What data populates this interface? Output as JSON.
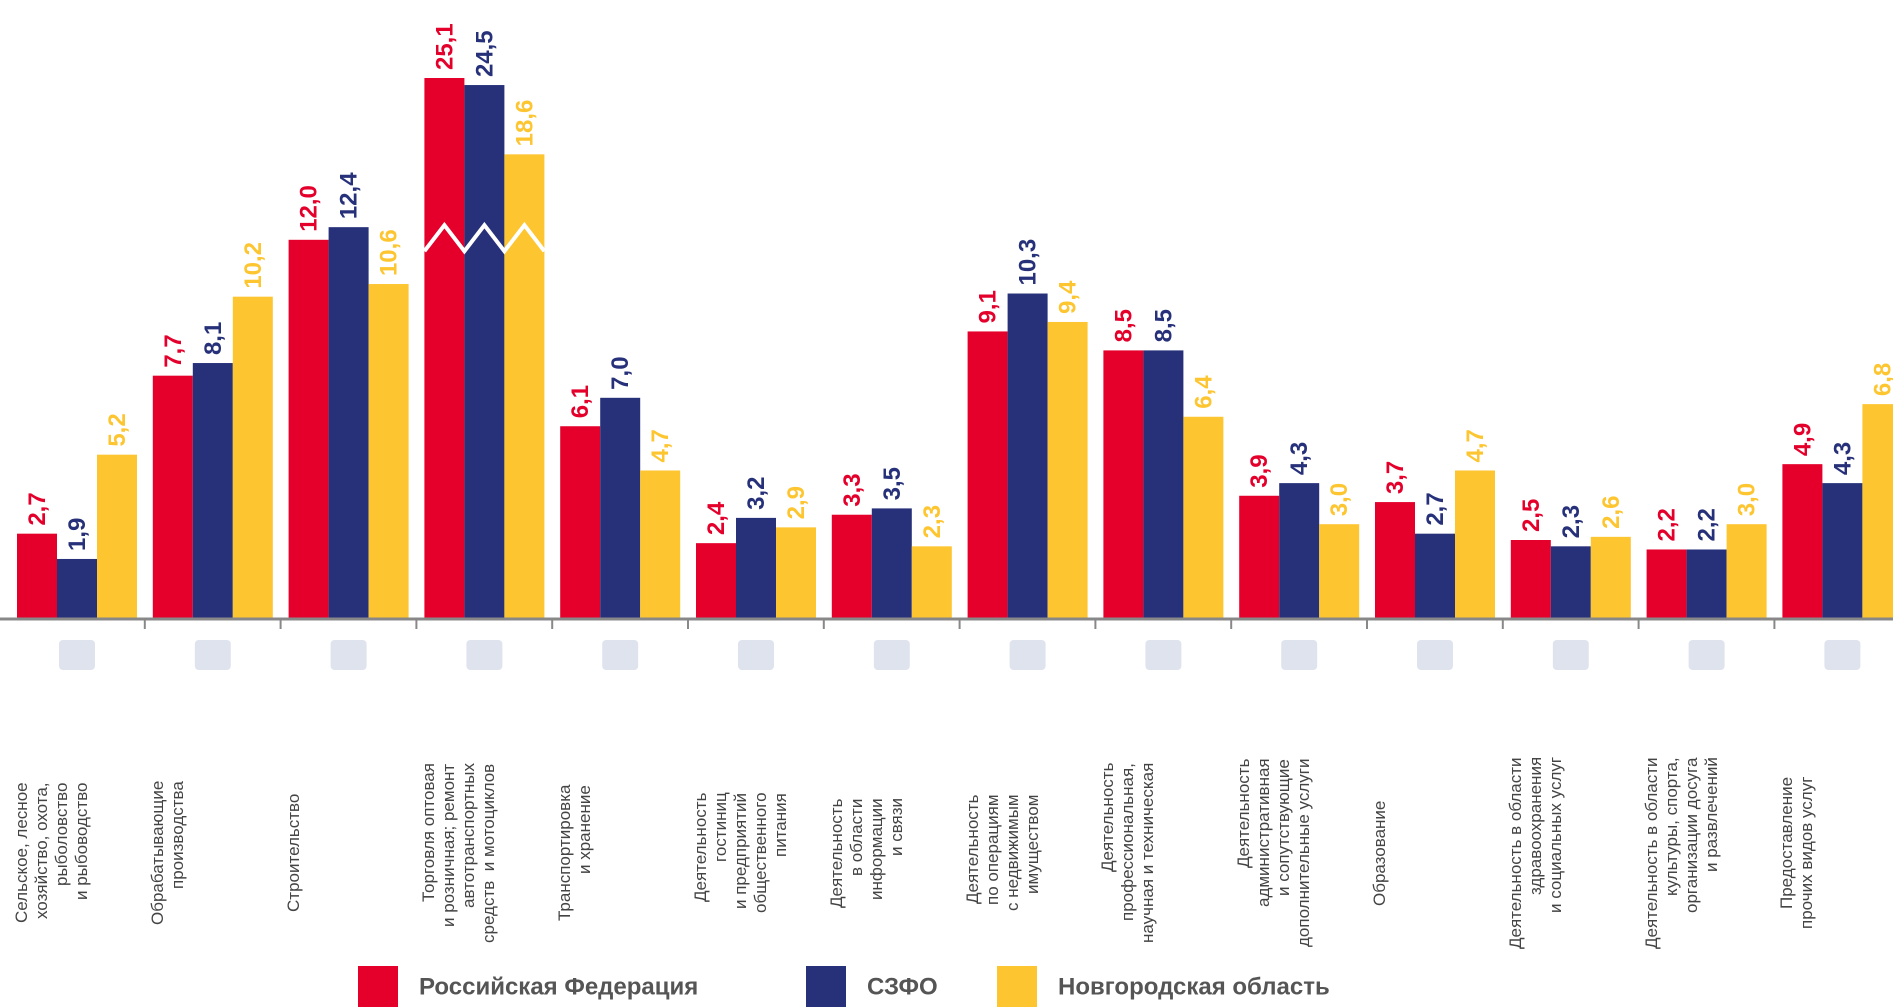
{
  "chart_data": {
    "type": "bar",
    "categories": [
      "Сельское, лесное\nхозяйство, охота,\nрыболовство\nи рыбоводство",
      "Обрабатывающие\nпроизводства",
      "Строительство",
      "Торговля оптовая\nи розничная; ремонт\nавтотранспортных\nсредств  и мотоциклов",
      "Транспортировка\nи хранение",
      "Деятельность\nгостиниц\nи предприятий\nобщественного\nпитания",
      "Деятельность\nв области\nинформации\nи связи",
      "Деятельность\nпо операциям\nс недвижимым\nимуществом",
      "Деятельность\nпрофессиональная,\nнаучная и техническая",
      "Деятельность\nадминистративная\nи сопутствующие\nдополнительные услуги",
      "Образование",
      "Деятельность в области\nздравоохранения\nи социальных услуг",
      "Деятельность в области\nкультуры, спорта,\nорганизации досуга\nи развлечений",
      "Предоставление\nпрочих видов услуг"
    ],
    "series": [
      {
        "name": "Российская Федерация",
        "color": "#e4002b",
        "values": [
          2.7,
          7.7,
          12.0,
          25.1,
          6.1,
          2.4,
          3.3,
          9.1,
          8.5,
          3.9,
          3.7,
          2.5,
          2.2,
          4.9
        ],
        "value_labels": [
          "2,7",
          "7,7",
          "12,0",
          "25,1",
          "6,1",
          "2,4",
          "3,3",
          "9,1",
          "8,5",
          "3,9",
          "3,7",
          "2,5",
          "2,2",
          "4,9"
        ]
      },
      {
        "name": "СЗФО",
        "color": "#27317a",
        "values": [
          1.9,
          8.1,
          12.4,
          24.5,
          7.0,
          3.2,
          3.5,
          10.3,
          8.5,
          4.3,
          2.7,
          2.3,
          2.2,
          4.3
        ],
        "value_labels": [
          "1,9",
          "8,1",
          "12,4",
          "24,5",
          "7,0",
          "3,2",
          "3,5",
          "10,3",
          "8,5",
          "4,3",
          "2,7",
          "2,3",
          "2,2",
          "4,3"
        ]
      },
      {
        "name": "Новгородская область",
        "color": "#fdc530",
        "values": [
          5.2,
          10.2,
          10.6,
          18.6,
          4.7,
          2.9,
          2.3,
          9.4,
          6.4,
          3.0,
          4.7,
          2.6,
          3.0,
          6.8
        ],
        "value_labels": [
          "5,2",
          "10,2",
          "10,6",
          "18,6",
          "4,7",
          "2,9",
          "2,3",
          "9,4",
          "6,4",
          "3,0",
          "4,7",
          "2,6",
          "3,0",
          "6,8"
        ]
      }
    ],
    "legend": "bottom"
  }
}
